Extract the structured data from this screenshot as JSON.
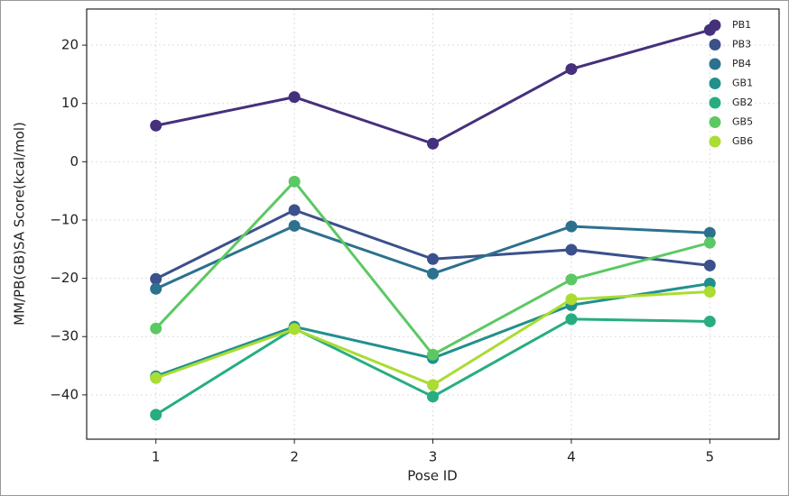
{
  "chart_data": {
    "type": "line",
    "x_label": "Pose ID",
    "y_label": "MM/PB(GB)SA Score(kcal/mol)",
    "x": [
      1,
      2,
      3,
      4,
      5
    ],
    "series": [
      {
        "name": "PB1",
        "color": "#45307c",
        "values": [
          6.2,
          11.1,
          3.1,
          15.9,
          22.6
        ]
      },
      {
        "name": "PB3",
        "color": "#3b518b",
        "values": [
          -20.1,
          -8.3,
          -16.7,
          -15.1,
          -17.8
        ]
      },
      {
        "name": "PB4",
        "color": "#2c718e",
        "values": [
          -21.8,
          -11.0,
          -19.2,
          -11.1,
          -12.2
        ]
      },
      {
        "name": "GB1",
        "color": "#21908d",
        "values": [
          -36.8,
          -28.3,
          -33.7,
          -24.6,
          -20.9
        ]
      },
      {
        "name": "GB2",
        "color": "#27ad81",
        "values": [
          -43.4,
          -28.6,
          -40.3,
          -27.0,
          -27.4
        ]
      },
      {
        "name": "GB5",
        "color": "#5cc863",
        "values": [
          -28.6,
          -3.4,
          -33.1,
          -20.2,
          -13.9
        ]
      },
      {
        "name": "GB6",
        "color": "#aadc32",
        "values": [
          -37.1,
          -28.7,
          -38.3,
          -23.6,
          -22.3
        ]
      }
    ],
    "xlim": [
      0.5,
      5.5
    ],
    "ylim": [
      -47.6,
      26.2
    ],
    "xticks": [
      1,
      2,
      3,
      4,
      5
    ],
    "yticks": [
      {
        "value": -40,
        "label": "−40"
      },
      {
        "value": -30,
        "label": "−30"
      },
      {
        "value": -20,
        "label": "−20"
      },
      {
        "value": -10,
        "label": "−10"
      },
      0,
      10,
      20
    ],
    "grid": true,
    "legend": "upper right"
  }
}
